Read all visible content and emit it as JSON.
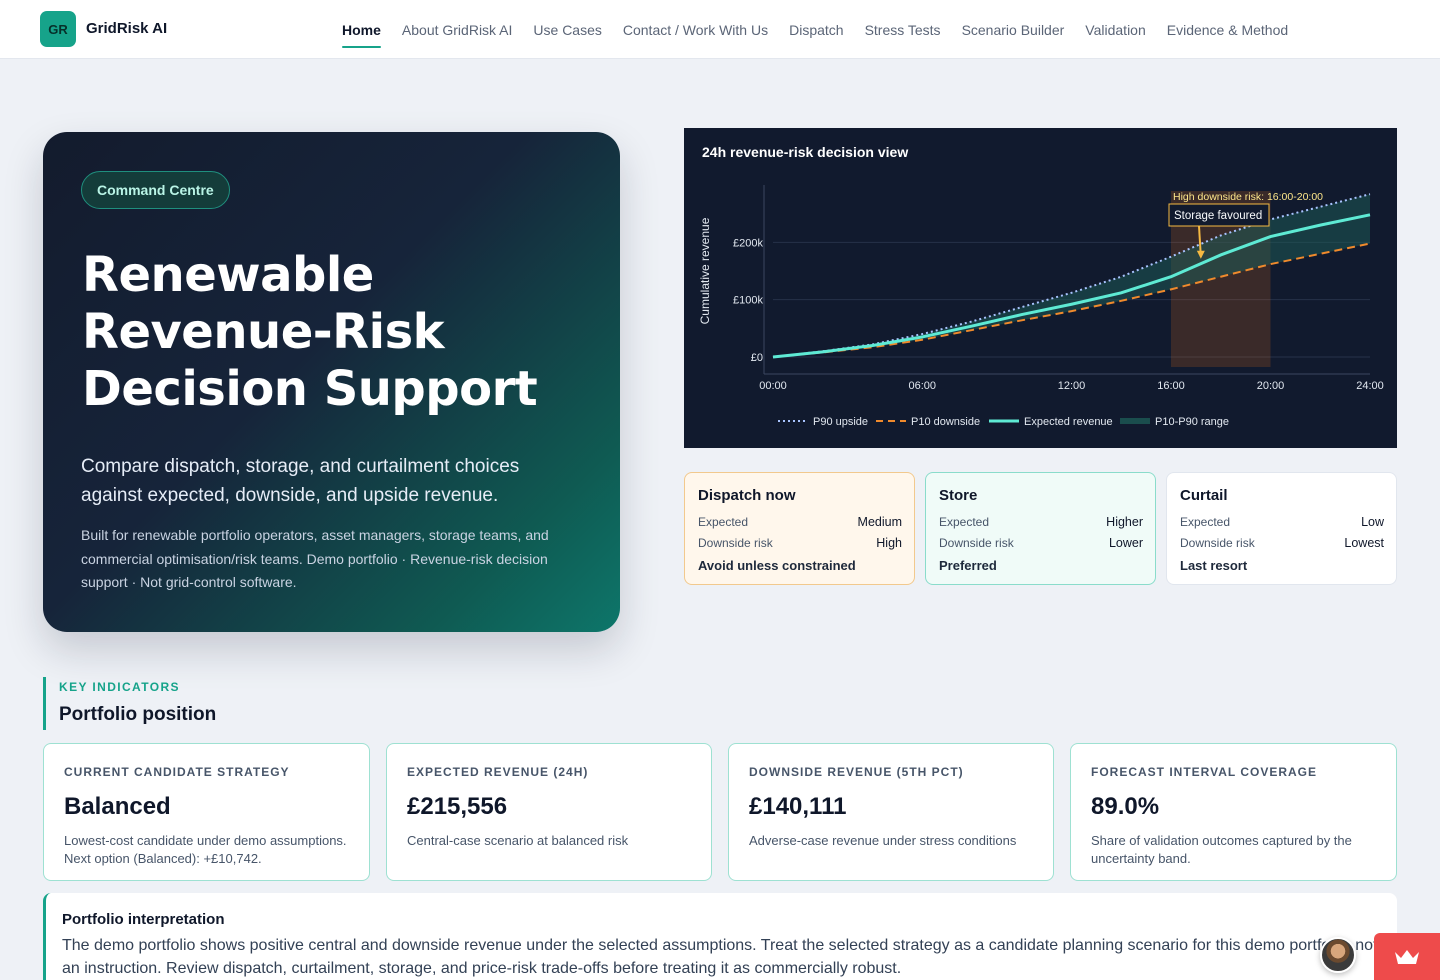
{
  "brand": {
    "badge": "GR",
    "name": "GridRisk AI"
  },
  "nav": [
    {
      "label": "Home",
      "active": true
    },
    {
      "label": "About GridRisk AI"
    },
    {
      "label": "Use Cases"
    },
    {
      "label": "Contact / Work With Us"
    },
    {
      "label": "Dispatch"
    },
    {
      "label": "Stress Tests"
    },
    {
      "label": "Scenario Builder"
    },
    {
      "label": "Validation"
    },
    {
      "label": "Evidence & Method"
    }
  ],
  "hero": {
    "chip": "Command Centre",
    "title": "Renewable Revenue-Risk Decision Support",
    "lead": "Compare dispatch, storage, and curtailment choices against expected, downside, and upside revenue.",
    "body": "Built for renewable portfolio operators, asset managers, storage teams, and commercial optimisation/risk teams. Demo portfolio · Revenue-risk decision support · Not grid-control software."
  },
  "chart_data": {
    "type": "line",
    "title": "24h revenue-risk decision view",
    "ylabel": "Cumulative revenue",
    "xlabel": "",
    "x_ticks": [
      "00:00",
      "06:00",
      "12:00",
      "16:00",
      "20:00",
      "24:00"
    ],
    "y_ticks": [
      "£0",
      "£100k",
      "£200k"
    ],
    "x_range": [
      0,
      24
    ],
    "ylim": [
      0,
      300000
    ],
    "grid": true,
    "legend_position": "bottom",
    "x": [
      0,
      2,
      4,
      6,
      8,
      10,
      12,
      14,
      16,
      18,
      20,
      22,
      24
    ],
    "series": [
      {
        "name": "P90 upside",
        "style": "dotted",
        "color": "#a9c4ff",
        "values": [
          0,
          10000,
          22000,
          40000,
          62000,
          87000,
          112000,
          140000,
          175000,
          212000,
          240000,
          262000,
          284000
        ]
      },
      {
        "name": "P10 downside",
        "style": "dashed",
        "color": "#f08a2c",
        "values": [
          0,
          8000,
          17000,
          30000,
          47000,
          64000,
          80000,
          98000,
          118000,
          140000,
          162000,
          180000,
          198000
        ]
      },
      {
        "name": "Expected revenue",
        "style": "solid",
        "color": "#5eead4",
        "values": [
          0,
          9000,
          20000,
          35000,
          54000,
          74000,
          92000,
          112000,
          140000,
          178000,
          210000,
          230000,
          248000
        ]
      },
      {
        "name": "P10-P90 range",
        "style": "band",
        "color": "#1d5a55"
      }
    ],
    "highlight": {
      "x_start": 16,
      "x_end": 20,
      "label": "High downside risk: 16:00-20:00",
      "callout": "Storage favoured"
    }
  },
  "decisions": [
    {
      "title": "Dispatch now",
      "expected_label": "Expected",
      "expected": "Medium",
      "risk_label": "Downside risk",
      "risk": "High",
      "verdict": "Avoid unless constrained",
      "tone": "warn"
    },
    {
      "title": "Store",
      "expected_label": "Expected",
      "expected": "Higher",
      "risk_label": "Downside risk",
      "risk": "Lower",
      "verdict": "Preferred",
      "tone": "good"
    },
    {
      "title": "Curtail",
      "expected_label": "Expected",
      "expected": "Low",
      "risk_label": "Downside risk",
      "risk": "Lowest",
      "verdict": "Last resort",
      "tone": "neutral"
    }
  ],
  "indicators": {
    "eyebrow": "KEY INDICATORS",
    "title": "Portfolio position",
    "cards": [
      {
        "label": "CURRENT CANDIDATE STRATEGY",
        "value": "Balanced",
        "note": "Lowest-cost candidate under demo assumptions. Next option (Balanced): +£10,742."
      },
      {
        "label": "EXPECTED REVENUE (24H)",
        "value": "£215,556",
        "note": "Central-case scenario at balanced risk"
      },
      {
        "label": "DOWNSIDE REVENUE (5TH PCT)",
        "value": "£140,111",
        "note": "Adverse-case revenue under stress conditions"
      },
      {
        "label": "FORECAST INTERVAL COVERAGE",
        "value": "89.0%",
        "note": "Share of validation outcomes captured by the uncertainty band."
      }
    ]
  },
  "interpretation": {
    "title": "Portfolio interpretation",
    "body": "The demo portfolio shows positive central and downside revenue under the selected assumptions. Treat the selected strategy as a candidate planning scenario for this demo portfolio, not an instruction. Review dispatch, curtailment, storage, and price-risk trade-offs before treating it as commercially robust."
  }
}
